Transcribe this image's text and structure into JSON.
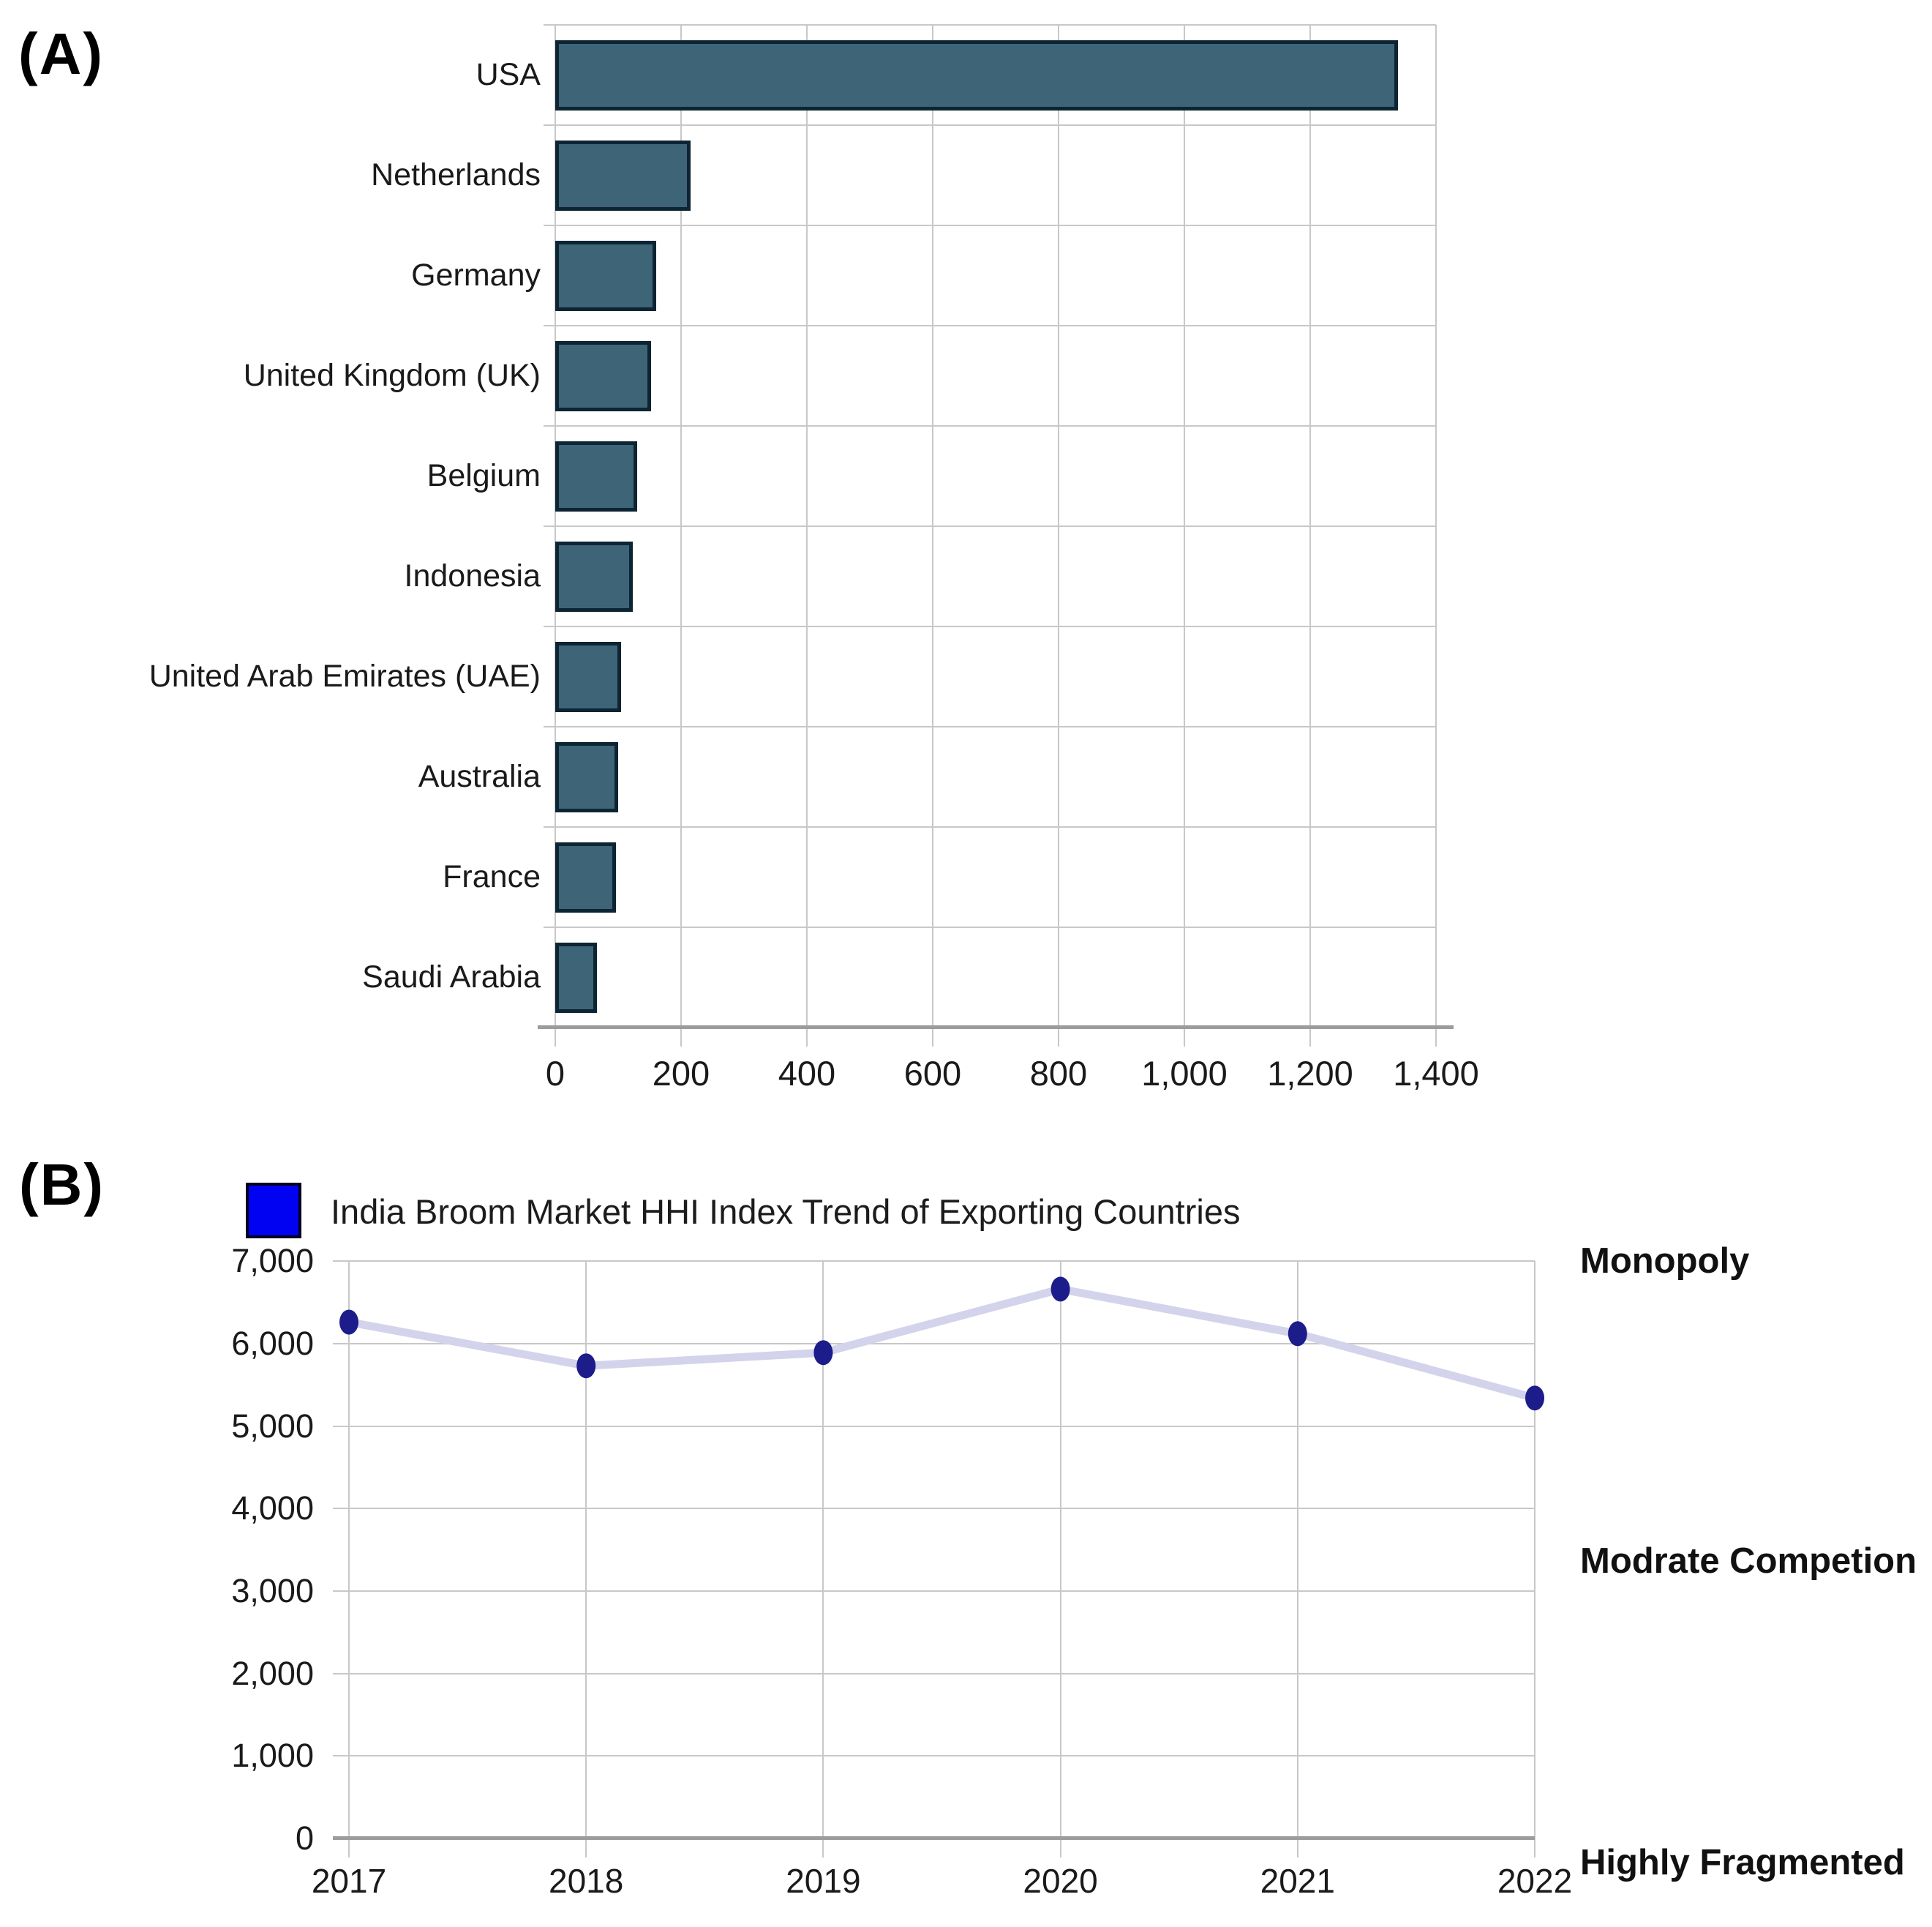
{
  "panels": {
    "a": "(A)",
    "b": "(B)"
  },
  "chart_data": [
    {
      "type": "bar",
      "orientation": "horizontal",
      "categories": [
        "USA",
        "Netherlands",
        "Germany",
        "United Kingdom (UK)",
        "Belgium",
        "Indonesia",
        "United Arab Emirates (UAE)",
        "Australia",
        "France",
        "Saudi Arabia"
      ],
      "values": [
        1340,
        215,
        160,
        152,
        130,
        123,
        105,
        100,
        97,
        66
      ],
      "xlim": [
        0,
        1400
      ],
      "x_ticks": [
        "0",
        "200",
        "400",
        "600",
        "800",
        "1,000",
        "1,200",
        "1,400"
      ],
      "grid": true,
      "bar_color": "#3e6478",
      "bar_border_color": "#0d2433"
    },
    {
      "type": "line",
      "title": "India Broom Market HHI Index Trend of Exporting Countries",
      "x": [
        "2017",
        "2018",
        "2019",
        "2020",
        "2021",
        "2022"
      ],
      "values": [
        6260,
        5730,
        5890,
        6660,
        6120,
        5340
      ],
      "ylim": [
        0,
        7000
      ],
      "y_ticks": [
        "7,000",
        "6,000",
        "5,000",
        "4,000",
        "3,000",
        "2,000",
        "1,000",
        "0"
      ],
      "grid": true,
      "legend_position": "top",
      "legend_swatch_color": "#0202f2",
      "line_color": "#d3d3ec",
      "marker_color": "#1c1c8a",
      "annotations": [
        "Monopoly",
        "Modrate Competion",
        "Highly Fragmented"
      ]
    }
  ]
}
